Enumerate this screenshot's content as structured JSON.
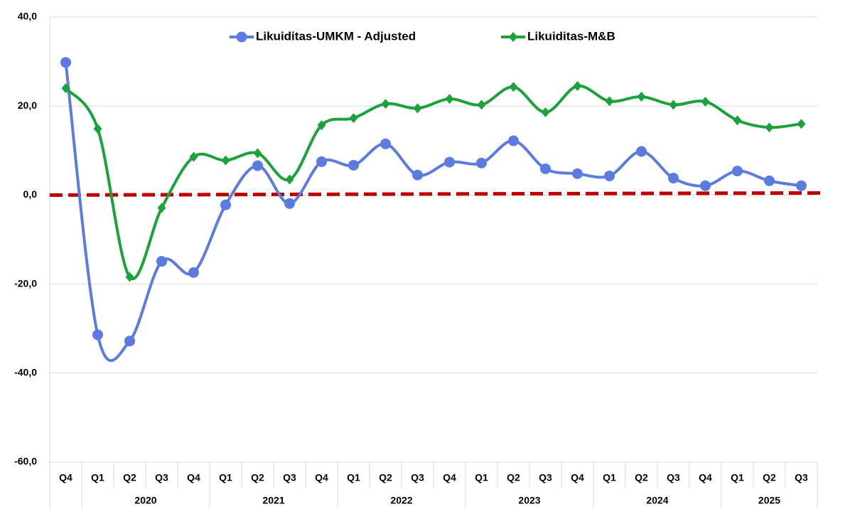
{
  "chart_data": {
    "type": "line",
    "categories": [
      "Q4",
      "Q1",
      "Q2",
      "Q3",
      "Q4",
      "Q1",
      "Q2",
      "Q3",
      "Q4",
      "Q1",
      "Q2",
      "Q3",
      "Q4",
      "Q1",
      "Q2",
      "Q3",
      "Q4",
      "Q1",
      "Q2",
      "Q3",
      "Q4",
      "Q1",
      "Q2",
      "Q3"
    ],
    "x_groups": [
      null,
      "2020",
      "2020",
      "2020",
      "2020",
      "2021",
      "2021",
      "2021",
      "2021",
      "2022",
      "2022",
      "2022",
      "2022",
      "2023",
      "2023",
      "2023",
      "2023",
      "2024",
      "2024",
      "2024",
      "2024",
      "2025",
      "2025",
      "2025"
    ],
    "series": [
      {
        "name": "Likuiditas-UMKM - Adjusted",
        "color": "#5b7be0",
        "marker": "circle",
        "values": [
          29.8,
          -31.4,
          -32.8,
          -14.9,
          -17.4,
          -2.2,
          6.6,
          -1.9,
          7.5,
          6.7,
          11.5,
          4.5,
          7.4,
          7.2,
          12.2,
          5.9,
          4.8,
          4.3,
          9.8,
          3.8,
          2.1,
          5.4,
          3.2,
          2.1
        ]
      },
      {
        "name": "Likuiditas-M&B",
        "color": "#1aa33a",
        "marker": "diamond",
        "values": [
          24.0,
          14.9,
          -18.4,
          -2.9,
          8.6,
          7.8,
          9.4,
          3.5,
          15.7,
          17.3,
          20.5,
          19.5,
          21.6,
          20.3,
          24.3,
          18.6,
          24.5,
          21.1,
          22.1,
          20.3,
          21.0,
          16.8,
          15.2,
          16.0
        ]
      }
    ],
    "reference_line": {
      "value": 0,
      "color": "#c00000"
    },
    "ylim": [
      -60,
      40
    ],
    "yticks": [
      {
        "value": -60,
        "label": "-60,0"
      },
      {
        "value": -40,
        "label": "-40,0"
      },
      {
        "value": -20,
        "label": "-20,0"
      },
      {
        "value": 0,
        "label": "0,0"
      },
      {
        "value": 20,
        "label": "20,0"
      },
      {
        "value": 40,
        "label": "40,0"
      }
    ],
    "grid": true,
    "legend": "top"
  }
}
